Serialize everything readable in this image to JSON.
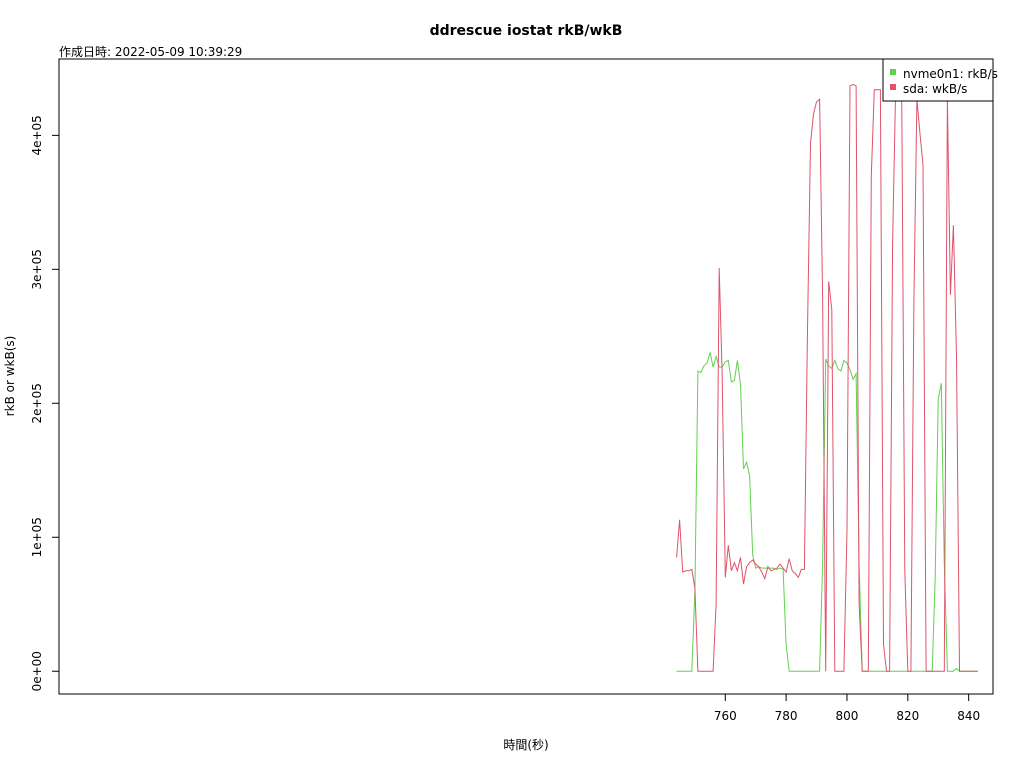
{
  "chart_data": {
    "type": "line",
    "title": "ddrescue iostat rkB/wkB",
    "subtitle": "作成日時: 2022-05-09 10:39:29",
    "xlabel": "時間(秒)",
    "ylabel": "rkB or wkB(s)",
    "xlim": [
      541,
      848
    ],
    "ylim": [
      -17000,
      457000
    ],
    "x_ticks": [
      760,
      780,
      800,
      820,
      840
    ],
    "x_tick_labels": [
      "760",
      "780",
      "800",
      "820",
      "840"
    ],
    "y_ticks": [
      0,
      100000,
      200000,
      300000,
      400000
    ],
    "y_tick_labels": [
      "0e+00",
      "1e+05",
      "2e+05",
      "3e+05",
      "4e+05"
    ],
    "grid": false,
    "legend_position": "top-right",
    "series": [
      {
        "name": "nvme0n1: rkB/s",
        "color": "#61d04f",
        "x": [
          744,
          745,
          746,
          747,
          748,
          749,
          750,
          751,
          752,
          753,
          754,
          755,
          756,
          757,
          758,
          759,
          760,
          761,
          762,
          763,
          764,
          765,
          766,
          767,
          768,
          769,
          770,
          771,
          772,
          773,
          774,
          775,
          776,
          777,
          778,
          779,
          780,
          781,
          782,
          783,
          784,
          785,
          786,
          787,
          788,
          789,
          790,
          791,
          792,
          793,
          794,
          795,
          796,
          797,
          798,
          799,
          800,
          801,
          802,
          803,
          804,
          805,
          806,
          807,
          808,
          809,
          810,
          811,
          812,
          813,
          814,
          815,
          816,
          817,
          818,
          819,
          820,
          821,
          822,
          823,
          824,
          825,
          826,
          827,
          828,
          829,
          830,
          831,
          832,
          833,
          834,
          835,
          836,
          837,
          838,
          839,
          840,
          841,
          842,
          843
        ],
        "y": [
          0,
          0,
          0,
          0,
          0,
          0,
          60000,
          224000,
          223000,
          228000,
          230000,
          238000,
          227000,
          235000,
          227000,
          227000,
          231000,
          232000,
          216000,
          217000,
          232000,
          214000,
          151000,
          156000,
          146000,
          87000,
          77000,
          78000,
          77000,
          77000,
          77000,
          77000,
          77000,
          76000,
          77000,
          76000,
          20000,
          0,
          0,
          0,
          0,
          0,
          0,
          0,
          0,
          0,
          0,
          0,
          80000,
          233000,
          228000,
          226000,
          232000,
          226000,
          224000,
          232000,
          230000,
          225000,
          218000,
          222000,
          80000,
          0,
          0,
          0,
          0,
          0,
          0,
          0,
          0,
          0,
          0,
          0,
          0,
          0,
          0,
          0,
          0,
          0,
          0,
          0,
          0,
          0,
          0,
          0,
          0,
          70000,
          203000,
          215000,
          80000,
          0,
          0,
          0,
          2000,
          0,
          0,
          0,
          0,
          0,
          0,
          0
        ]
      },
      {
        "name": "sda: wkB/s",
        "color": "#df536b",
        "x": [
          744,
          745,
          746,
          747,
          748,
          749,
          750,
          751,
          752,
          753,
          754,
          755,
          756,
          757,
          758,
          759,
          760,
          761,
          762,
          763,
          764,
          765,
          766,
          767,
          768,
          769,
          770,
          771,
          772,
          773,
          774,
          775,
          776,
          777,
          778,
          779,
          780,
          781,
          782,
          783,
          784,
          785,
          786,
          787,
          788,
          789,
          790,
          791,
          792,
          793,
          794,
          795,
          796,
          797,
          798,
          799,
          800,
          801,
          802,
          803,
          804,
          805,
          806,
          807,
          808,
          809,
          810,
          811,
          812,
          813,
          814,
          815,
          816,
          817,
          818,
          819,
          820,
          821,
          822,
          823,
          824,
          825,
          826,
          827,
          828,
          829,
          830,
          831,
          832,
          833,
          834,
          835,
          836,
          837,
          838,
          839,
          840,
          841,
          842,
          843
        ],
        "y": [
          85000,
          113000,
          74000,
          75000,
          75000,
          76000,
          62000,
          0,
          0,
          0,
          0,
          0,
          0,
          50000,
          301000,
          220000,
          70000,
          94000,
          75000,
          81000,
          75000,
          85000,
          65000,
          78000,
          81000,
          83000,
          80000,
          78000,
          74000,
          69000,
          78000,
          75000,
          76000,
          77000,
          80000,
          77000,
          74000,
          84000,
          75000,
          73000,
          70000,
          76000,
          76000,
          250000,
          394000,
          416000,
          425000,
          427000,
          280000,
          0,
          291000,
          270000,
          0,
          0,
          0,
          0,
          105000,
          437000,
          438000,
          437000,
          50000,
          0,
          0,
          0,
          370000,
          434000,
          434000,
          434000,
          20000,
          0,
          0,
          320000,
          433000,
          434000,
          433000,
          75000,
          0,
          0,
          276000,
          427000,
          401000,
          378000,
          0,
          0,
          0,
          0,
          0,
          0,
          0,
          427000,
          281000,
          333000,
          235000,
          0,
          0,
          0,
          0,
          0,
          0,
          0
        ]
      }
    ]
  }
}
